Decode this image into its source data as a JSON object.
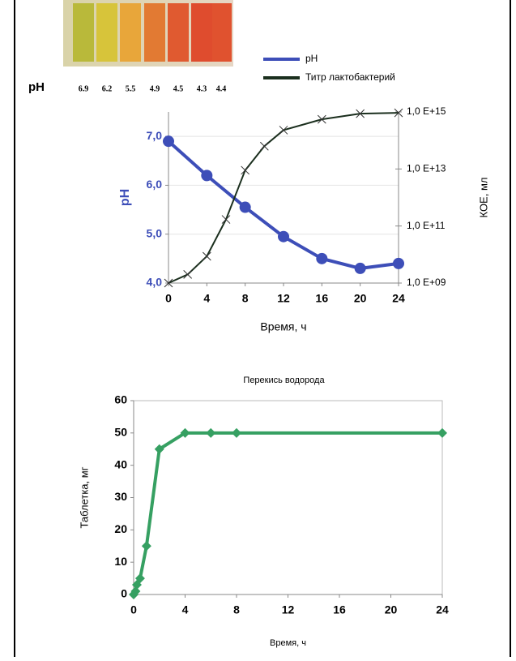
{
  "photo": {
    "label": "pH",
    "tube_values": [
      "6.9",
      "6.2",
      "5.5",
      "4.9",
      "4.5",
      "4.3",
      "4.4"
    ]
  },
  "chart_data": [
    {
      "type": "line",
      "xlabel": "Время, ч",
      "ylabel": "pH",
      "y2label": "КОЕ, мл",
      "xlim": [
        0,
        24
      ],
      "xticks": [
        0,
        4,
        8,
        12,
        16,
        20,
        24
      ],
      "ylim": [
        4,
        7.5
      ],
      "yticks": [
        {
          "value": 4,
          "label": "4,0"
        },
        {
          "value": 5,
          "label": "5,0"
        },
        {
          "value": 6,
          "label": "6,0"
        },
        {
          "value": 7,
          "label": "7,0"
        }
      ],
      "y2lim": [
        1000000000.0,
        1000000000000000.0
      ],
      "y2scale": "log",
      "y2ticks": [
        {
          "value": 1000000000.0,
          "label": "1,0 E+09"
        },
        {
          "value": 100000000000.0,
          "label": "1,0 E+11"
        },
        {
          "value": 10000000000000.0,
          "label": "1,0 E+13"
        },
        {
          "value": 1000000000000000.0,
          "label": "1,0 E+15"
        }
      ],
      "grid": true,
      "legend": "top",
      "series": [
        {
          "name": "pH",
          "color": "#3d4eb8",
          "marker": "circle",
          "x": [
            0,
            4,
            8,
            12,
            16,
            20,
            24
          ],
          "values": [
            6.9,
            6.2,
            5.55,
            4.95,
            4.5,
            4.3,
            4.4
          ]
        },
        {
          "name": "Титр лактобактерий",
          "color": "#1b2f1e",
          "marker": "cross",
          "axis": "y2",
          "x": [
            0,
            2,
            4,
            6,
            8,
            10,
            12,
            16,
            20,
            24
          ],
          "values": [
            1000000000.0,
            2000000000.0,
            8700000000.0,
            170000000000.0,
            9000000000000.0,
            63000000000000.0,
            230000000000000.0,
            550000000000000.0,
            870000000000000.0,
            930000000000000.0
          ]
        }
      ]
    },
    {
      "type": "line",
      "title": "Перекись водорода",
      "xlabel": "Время, ч",
      "ylabel": "Таблетка, мг",
      "xlim": [
        0,
        24
      ],
      "xticks": [
        0,
        4,
        8,
        12,
        16,
        20,
        24
      ],
      "ylim": [
        0,
        60
      ],
      "yticks": [
        0,
        10,
        20,
        30,
        40,
        50,
        60
      ],
      "grid": false,
      "series": [
        {
          "name": null,
          "color": "#36a062",
          "marker": "diamond",
          "x": [
            0,
            0.15,
            0.25,
            0.5,
            1,
            2,
            4,
            6,
            8,
            24
          ],
          "values": [
            0,
            1,
            3,
            5,
            15,
            45,
            50,
            50,
            50,
            50
          ]
        }
      ]
    }
  ]
}
